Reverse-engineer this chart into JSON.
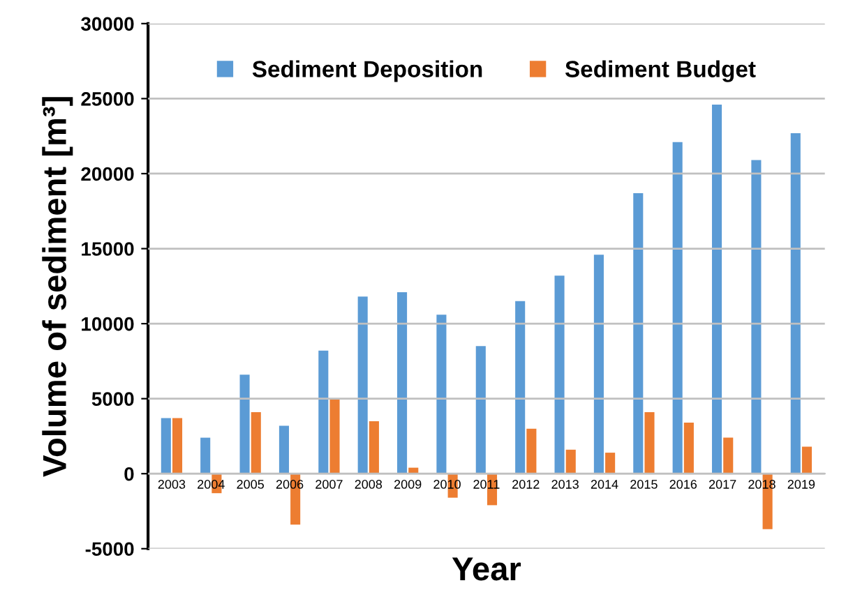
{
  "chart_data": {
    "type": "bar",
    "xlabel": "Year",
    "ylabel": "Volume of sediment [m³]",
    "categories": [
      "2003",
      "2004",
      "2005",
      "2006",
      "2007",
      "2008",
      "2009",
      "2010",
      "2011",
      "2012",
      "2013",
      "2014",
      "2015",
      "2016",
      "2017",
      "2018",
      "2019"
    ],
    "series": [
      {
        "name": "Sediment Deposition",
        "color": "#5b9bd5",
        "values": [
          3700,
          2400,
          6600,
          3200,
          8200,
          11800,
          12100,
          10600,
          8500,
          11500,
          13200,
          14600,
          18700,
          22100,
          24600,
          20900,
          22700
        ]
      },
      {
        "name": "Sediment Budget",
        "color": "#ed7d31",
        "values": [
          3700,
          -1300,
          4100,
          -3400,
          5000,
          3500,
          400,
          -1600,
          -2100,
          3000,
          1600,
          1400,
          4100,
          3400,
          2400,
          -3700,
          1800
        ]
      }
    ],
    "ylim": [
      -5000,
      30000
    ],
    "yticks": [
      -5000,
      0,
      5000,
      10000,
      15000,
      20000,
      25000,
      30000
    ],
    "grid": "y",
    "legend": "top"
  }
}
